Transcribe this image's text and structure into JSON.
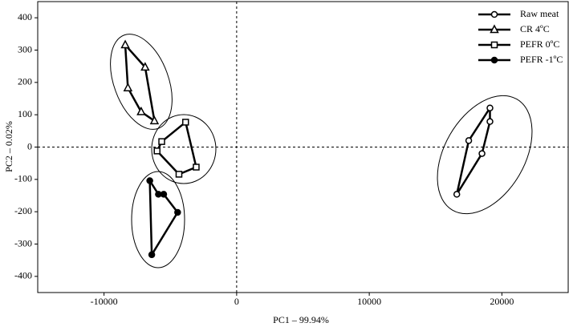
{
  "chart_data": {
    "type": "scatter",
    "x_label": "PC1 – 99.94%",
    "y_label": "PC2 – 0.02%",
    "xlim": [
      -15000,
      25000
    ],
    "ylim": [
      -450,
      450
    ],
    "xticks": [
      -10000,
      0,
      10000,
      20000
    ],
    "yticks": [
      -400,
      -300,
      -200,
      -100,
      0,
      100,
      200,
      300,
      400
    ],
    "zero_lines": true,
    "legend": "top-right",
    "series": [
      {
        "name": "Raw meat",
        "color": "#000000",
        "marker": "circle",
        "x": [
          19100,
          19100,
          18500,
          16600,
          17500
        ],
        "values": [
          121,
          79,
          -20,
          -146,
          20
        ]
      },
      {
        "name": "CR 4ºC",
        "color": "#000000",
        "marker": "triangle",
        "x": [
          -8400,
          -6900,
          -6200,
          -7200,
          -8200
        ],
        "values": [
          316,
          247,
          81,
          109,
          183
        ]
      },
      {
        "name": "PEFR 0ºC",
        "color": "#000000",
        "marker": "square",
        "x": [
          -3850,
          -3050,
          -4350,
          -6000,
          -5650
        ],
        "values": [
          77,
          -62,
          -84,
          -12,
          17
        ]
      },
      {
        "name": "PEFR -1ºC",
        "color": "#000000",
        "marker": "filled-circle",
        "x": [
          -6550,
          -5900,
          -5500,
          -4450,
          -6400
        ],
        "values": [
          -104,
          -146,
          -146,
          -202,
          -333
        ]
      }
    ]
  }
}
